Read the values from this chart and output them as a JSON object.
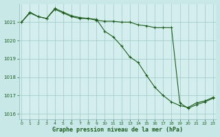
{
  "title": "Graphe pression niveau de la mer (hPa)",
  "bg_color": "#c8e8e8",
  "plot_bg_color": "#d4eeed",
  "line_color": "#1a5c1a",
  "grid_color": "#9ec8c8",
  "xlabel_color": "#1a5c1a",
  "hours": [
    0,
    1,
    2,
    3,
    4,
    5,
    6,
    7,
    8,
    9,
    10,
    11,
    12,
    13,
    14,
    15,
    16,
    17,
    18,
    19,
    20,
    21,
    22,
    23
  ],
  "series1": [
    1021.0,
    1021.5,
    1021.3,
    1021.2,
    1021.7,
    1021.5,
    1021.3,
    1021.2,
    1021.2,
    1021.1,
    1021.05,
    1021.05,
    1021.0,
    1021.0,
    1020.85,
    1020.8,
    1020.7,
    1020.7,
    1020.7,
    1016.6,
    1016.3,
    1016.5,
    1016.65,
    1016.85
  ],
  "series2": [
    1021.0,
    1021.55,
    1021.3,
    1021.2,
    1021.75,
    1021.55,
    1021.35,
    1021.25,
    1021.2,
    1021.15,
    1020.5,
    1020.2,
    1019.7,
    1019.1,
    1018.8,
    1018.1,
    1017.45,
    1017.0,
    1016.65,
    1016.45,
    1016.35,
    1016.6,
    1016.7,
    1016.9
  ],
  "ylim_min": 1015.7,
  "ylim_max": 1022.0,
  "yticks": [
    1016,
    1017,
    1018,
    1019,
    1020,
    1021
  ],
  "xticks": [
    0,
    1,
    2,
    3,
    4,
    5,
    6,
    7,
    8,
    9,
    10,
    11,
    12,
    13,
    14,
    15,
    16,
    17,
    18,
    19,
    20,
    21,
    22,
    23
  ]
}
